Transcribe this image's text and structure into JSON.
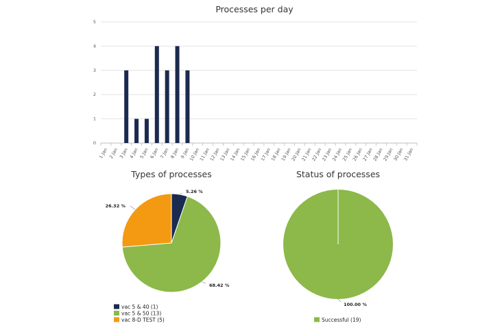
{
  "chart_data": [
    {
      "type": "bar",
      "title": "Processes per day",
      "xlabel": "",
      "ylabel": "",
      "ylim": [
        0,
        5
      ],
      "yticks": [
        0,
        1,
        2,
        3,
        4,
        5
      ],
      "grid": true,
      "color": "#1b2a4f",
      "categories": [
        "1 Jan",
        "2 Jan",
        "3 Jan",
        "4 Jan",
        "5 Jan",
        "6 Jan",
        "7 Jan",
        "8 Jan",
        "9 Jan",
        "10 Jan",
        "11 Jan",
        "12 Jan",
        "13 Jan",
        "14 Jan",
        "15 Jan",
        "16 Jan",
        "17 Jan",
        "18 Jan",
        "19 Jan",
        "20 Jan",
        "21 Jan",
        "22 Jan",
        "23 Jan",
        "24 Jan",
        "25 Jan",
        "26 Jan",
        "27 Jan",
        "28 Jan",
        "29 Jan",
        "30 Jan",
        "31 Jan"
      ],
      "values": [
        0,
        0,
        3,
        1,
        1,
        4,
        3,
        4,
        3,
        0,
        0,
        0,
        0,
        0,
        0,
        0,
        0,
        0,
        0,
        0,
        0,
        0,
        0,
        0,
        0,
        0,
        0,
        0,
        0,
        0,
        0
      ]
    },
    {
      "type": "pie",
      "title": "Types of processes",
      "legend_position": "bottom-left",
      "slices": [
        {
          "label": "vac 5 & 40 (1)",
          "value": 5.26,
          "display": "5.26 %",
          "color": "#1b2a4f"
        },
        {
          "label": "vac 5 & 50 (13)",
          "value": 68.42,
          "display": "68.42 %",
          "color": "#8db84a"
        },
        {
          "label": "vac 8-D TEST (5)",
          "value": 26.32,
          "display": "26.32 %",
          "color": "#f39a12"
        }
      ]
    },
    {
      "type": "pie",
      "title": "Status of processes",
      "legend_position": "bottom-left",
      "slices": [
        {
          "label": "Successful (19)",
          "value": 100.0,
          "display": "100.00 %",
          "color": "#8db84a"
        }
      ]
    }
  ]
}
